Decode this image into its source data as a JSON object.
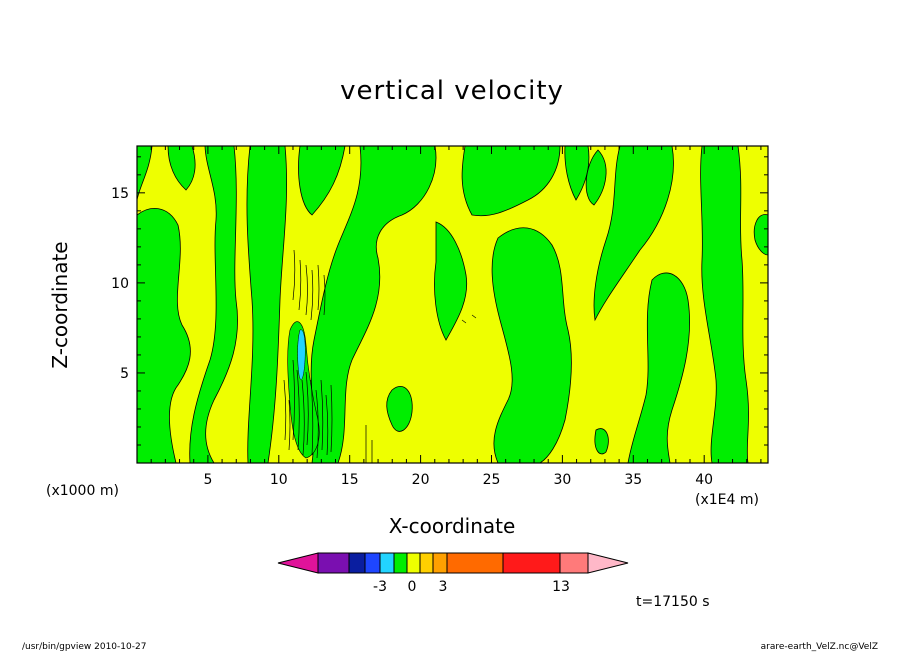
{
  "chart_data": {
    "type": "heatmap",
    "title": "vertical velocity",
    "xlabel": "X-coordinate",
    "ylabel": "Z-coordinate",
    "x_unit_label": "(x1E4 m)",
    "y_unit_label": "(x1000 m)",
    "xlim": [
      0,
      44.5
    ],
    "ylim": [
      0,
      17.6
    ],
    "x_ticks": [
      "5",
      "10",
      "15",
      "20",
      "25",
      "30",
      "35",
      "40"
    ],
    "x_tick_values": [
      5,
      10,
      15,
      20,
      25,
      30,
      35,
      40
    ],
    "y_ticks": [
      "5",
      "10",
      "15"
    ],
    "y_tick_values": [
      5,
      10,
      15
    ],
    "dominant_fill_colors": {
      "negative_weak": "#00ee00",
      "positive_weak": "#eeff00"
    },
    "colorbar": {
      "colors": [
        "#e0139a",
        "#7a0fb0",
        "#0a1ea0",
        "#1e46ff",
        "#22d4ff",
        "#00ee00",
        "#eeff00",
        "#ffd000",
        "#ffa000",
        "#ff6a00",
        "#ff1a1a",
        "#ff7a7a",
        "#ffb8c8"
      ],
      "tick_labels": [
        "-3",
        "0",
        "3",
        "13"
      ],
      "tick_values": [
        -3,
        0,
        3,
        13
      ]
    },
    "timestamp": "t=17150 s"
  },
  "footer": {
    "left": "/usr/bin/gpview  2010-10-27",
    "right": "arare-earth_VelZ.nc@VelZ"
  }
}
